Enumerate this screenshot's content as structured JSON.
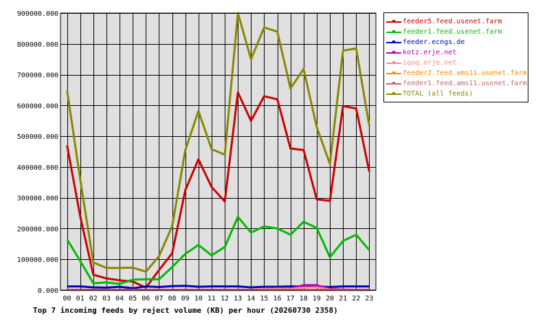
{
  "chart_data": {
    "type": "line",
    "title": "Top 7 incoming feeds by reject volume (KB) per hour (20260730 2358)",
    "xlabel": "",
    "ylabel": "",
    "categories": [
      "00",
      "01",
      "02",
      "03",
      "04",
      "05",
      "06",
      "07",
      "08",
      "09",
      "10",
      "11",
      "12",
      "13",
      "14",
      "15",
      "16",
      "17",
      "18",
      "19",
      "20",
      "21",
      "22",
      "23"
    ],
    "ylim": [
      0,
      900000
    ],
    "yticks": [
      0,
      100000,
      200000,
      300000,
      400000,
      500000,
      600000,
      700000,
      800000,
      900000
    ],
    "ytick_labels": [
      "0.000",
      "100000.000",
      "200000.000",
      "300000.000",
      "400000.000",
      "500000.000",
      "600000.000",
      "700000.000",
      "800000.000",
      "900000.000"
    ],
    "grid": true,
    "legend_position": "right",
    "series": [
      {
        "name": "feeder5.feed.usenet.farm",
        "color": "#cc0000",
        "values": [
          470000,
          240000,
          50000,
          38000,
          32000,
          28000,
          8000,
          65000,
          120000,
          325000,
          425000,
          335000,
          288000,
          642000,
          550000,
          630000,
          620000,
          460000,
          455000,
          295000,
          290000,
          598000,
          590000,
          385000
        ]
      },
      {
        "name": "feeder1.feed.usenet.farm",
        "color": "#00bb00",
        "values": [
          165000,
          95000,
          22000,
          25000,
          20000,
          34000,
          35000,
          35000,
          75000,
          118000,
          147000,
          113000,
          140000,
          238000,
          187000,
          207000,
          200000,
          180000,
          222000,
          202000,
          107000,
          160000,
          180000,
          130000
        ]
      },
      {
        "name": "feeder.ecngs.de",
        "color": "#0000bb",
        "values": [
          12000,
          12000,
          9000,
          8000,
          11000,
          6000,
          12000,
          10000,
          13000,
          14000,
          11000,
          12000,
          12000,
          12000,
          9000,
          11000,
          11000,
          12000,
          12000,
          12000,
          10000,
          12000,
          12000,
          12000
        ]
      },
      {
        "name": "kotz.erje.net",
        "color": "#bb00bb",
        "values": [
          1000,
          1000,
          1000,
          1000,
          1000,
          1000,
          1000,
          1000,
          1000,
          1000,
          1000,
          1000,
          1000,
          1000,
          1000,
          2000,
          3000,
          5000,
          16000,
          16000,
          4000,
          2000,
          1000,
          1000
        ]
      },
      {
        "name": "iqoq.erje.net",
        "color": "#ff8888",
        "values": [
          500,
          500,
          500,
          500,
          500,
          500,
          500,
          500,
          500,
          500,
          500,
          500,
          500,
          500,
          500,
          3000,
          5000,
          4000,
          8000,
          9000,
          2000,
          1000,
          500,
          500
        ]
      },
      {
        "name": "feeder2.feed.ams11.usenet.farm",
        "color": "#ff8800",
        "values": [
          0,
          0,
          0,
          0,
          0,
          0,
          0,
          0,
          0,
          0,
          0,
          0,
          0,
          0,
          0,
          0,
          0,
          0,
          0,
          0,
          0,
          0,
          0,
          0
        ]
      },
      {
        "name": "feeder1.feed.ams11.usenet.farm",
        "color": "#cc6666",
        "values": [
          0,
          0,
          0,
          0,
          0,
          0,
          0,
          0,
          0,
          0,
          0,
          0,
          0,
          0,
          0,
          0,
          0,
          0,
          0,
          0,
          0,
          0,
          0,
          0
        ]
      },
      {
        "name": "TOTAL (all feeds)",
        "color": "#888800",
        "values": [
          650000,
          360000,
          90000,
          72000,
          72000,
          73000,
          60000,
          110000,
          208000,
          455000,
          582000,
          458000,
          440000,
          900000,
          750000,
          853000,
          840000,
          655000,
          718000,
          530000,
          410000,
          778000,
          785000,
          533000
        ]
      }
    ]
  }
}
